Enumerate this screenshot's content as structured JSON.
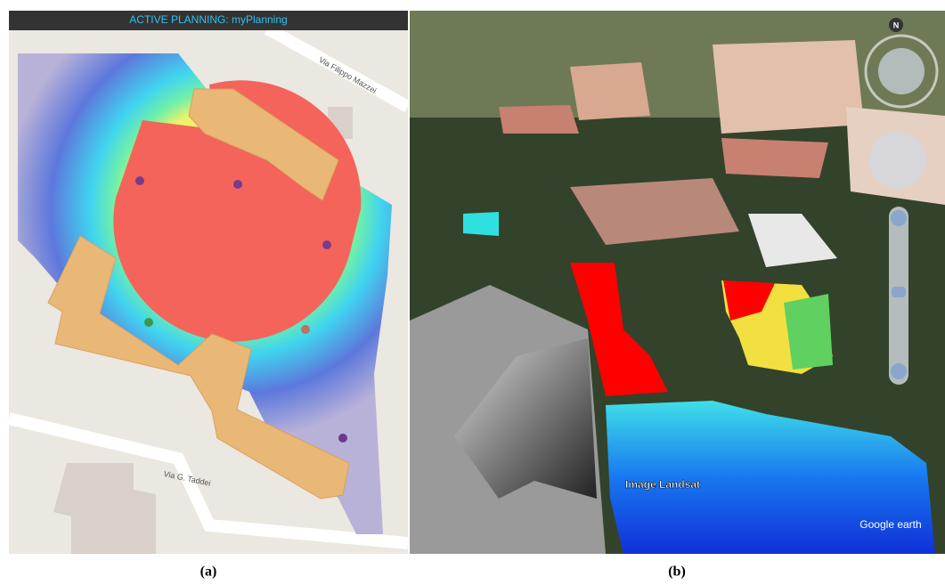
{
  "header": {
    "title": "ACTIVE PLANNING: myPlanning"
  },
  "map": {
    "streets": [
      "Via Filippo Mazzei",
      "Via G. Taddei"
    ]
  },
  "earth_view": {
    "compass": "N",
    "labels": [
      "Image Landsat",
      "Google earth"
    ]
  },
  "captions": [
    "(a)",
    "(b)"
  ]
}
